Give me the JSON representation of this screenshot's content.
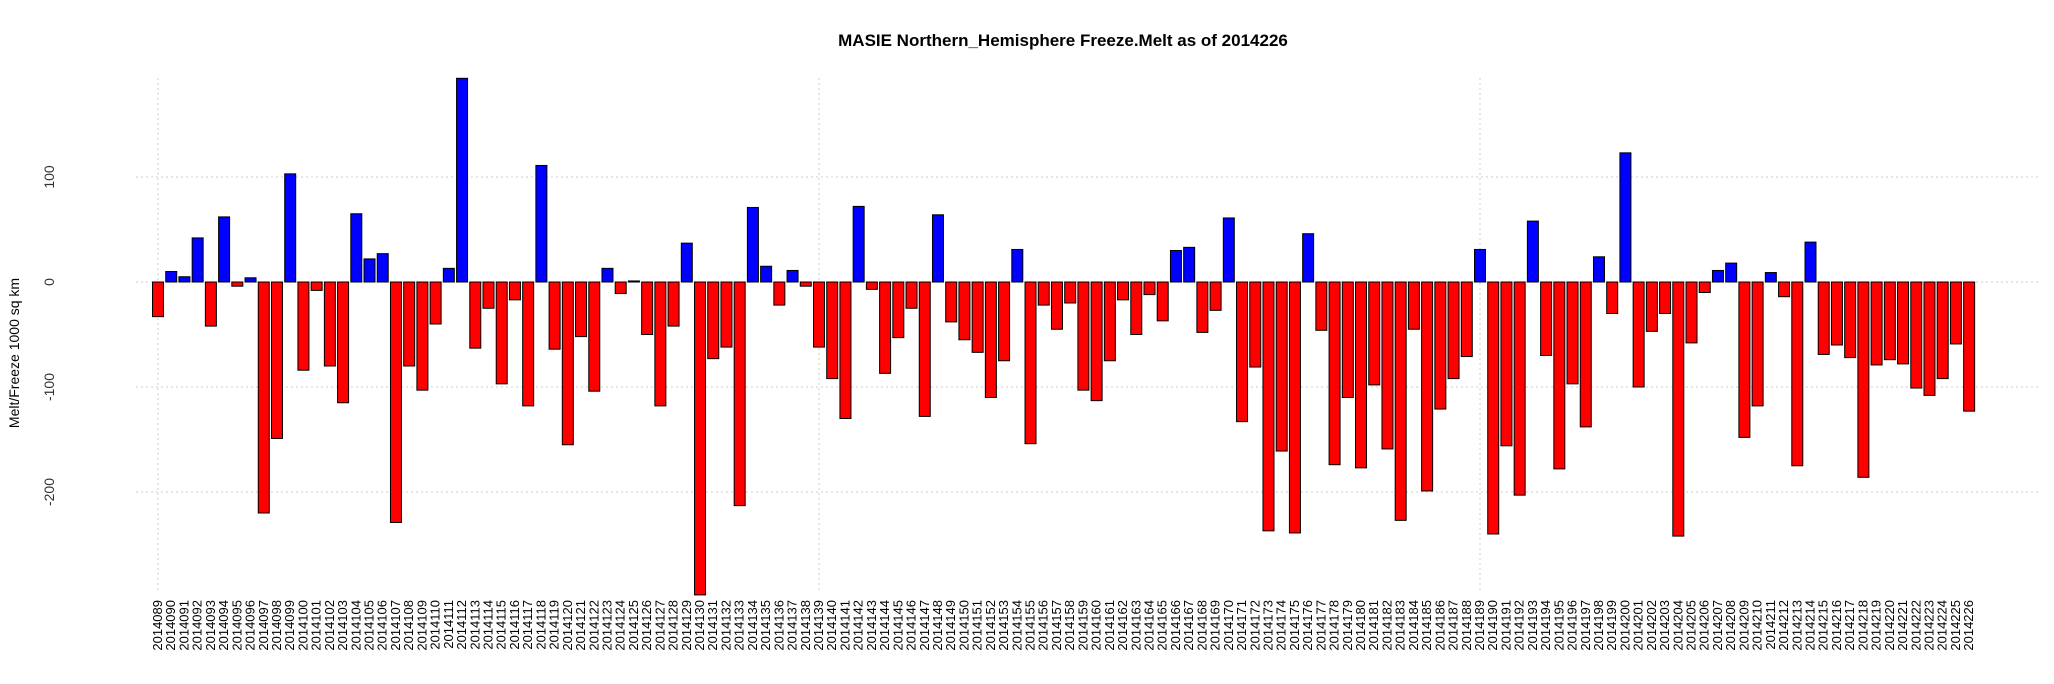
{
  "chart_data": {
    "type": "bar",
    "title": "MASIE Northern_Hemisphere Freeze.Melt as of 2014226",
    "xlabel": "",
    "ylabel": "Melt/Freeze 1000 sq km",
    "yticks": [
      -200,
      -100,
      0,
      100
    ],
    "ylim": [
      -300,
      195
    ],
    "grid": true,
    "colors": {
      "positive": "#0000ff",
      "negative": "#ff0000"
    },
    "categories": [
      "2014089",
      "2014090",
      "2014091",
      "2014092",
      "2014093",
      "2014094",
      "2014095",
      "2014096",
      "2014097",
      "2014098",
      "2014099",
      "2014100",
      "2014101",
      "2014102",
      "2014103",
      "2014104",
      "2014105",
      "2014106",
      "2014107",
      "2014108",
      "2014109",
      "2014110",
      "2014111",
      "2014112",
      "2014113",
      "2014114",
      "2014115",
      "2014116",
      "2014117",
      "2014118",
      "2014119",
      "2014120",
      "2014121",
      "2014122",
      "2014123",
      "2014124",
      "2014125",
      "2014126",
      "2014127",
      "2014128",
      "2014129",
      "2014130",
      "2014131",
      "2014132",
      "2014133",
      "2014134",
      "2014135",
      "2014136",
      "2014137",
      "2014138",
      "2014139",
      "2014140",
      "2014141",
      "2014142",
      "2014143",
      "2014144",
      "2014145",
      "2014146",
      "2014147",
      "2014148",
      "2014149",
      "2014150",
      "2014151",
      "2014152",
      "2014153",
      "2014154",
      "2014155",
      "2014156",
      "2014157",
      "2014158",
      "2014159",
      "2014160",
      "2014161",
      "2014162",
      "2014163",
      "2014164",
      "2014165",
      "2014166",
      "2014167",
      "2014168",
      "2014169",
      "2014170",
      "2014171",
      "2014172",
      "2014173",
      "2014174",
      "2014175",
      "2014176",
      "2014177",
      "2014178",
      "2014179",
      "2014180",
      "2014181",
      "2014182",
      "2014183",
      "2014184",
      "2014185",
      "2014186",
      "2014187",
      "2014188",
      "2014189",
      "2014190",
      "2014191",
      "2014192",
      "2014193",
      "2014194",
      "2014195",
      "2014196",
      "2014197",
      "2014198",
      "2014199",
      "2014200",
      "2014201",
      "2014202",
      "2014203",
      "2014204",
      "2014205",
      "2014206",
      "2014207",
      "2014208",
      "2014209",
      "2014210",
      "2014211",
      "2014212",
      "2014213",
      "2014214",
      "2014215",
      "2014216",
      "2014217",
      "2014218",
      "2014219",
      "2014220",
      "2014221",
      "2014222",
      "2014223",
      "2014224",
      "2014225",
      "2014226"
    ],
    "values": [
      -33,
      10,
      5,
      42,
      -42,
      62,
      -4,
      4,
      -220,
      -149,
      103,
      -84,
      -8,
      -80,
      -115,
      65,
      22,
      27,
      -229,
      -80,
      -103,
      -40,
      13,
      194,
      -63,
      -25,
      -97,
      -17,
      -118,
      111,
      -64,
      -155,
      -52,
      -104,
      13,
      -11,
      1,
      -50,
      -118,
      -42,
      37,
      -298,
      -73,
      -62,
      -213,
      71,
      15,
      -22,
      11,
      -4,
      -62,
      -92,
      -130,
      72,
      -7,
      -87,
      -53,
      -25,
      -128,
      64,
      -38,
      -55,
      -67,
      -110,
      -75,
      31,
      -154,
      -22,
      -45,
      -20,
      -103,
      -113,
      -75,
      -17,
      -50,
      -12,
      -37,
      30,
      33,
      -48,
      -27,
      61,
      -133,
      -81,
      -237,
      -161,
      -239,
      46,
      -46,
      -174,
      -110,
      -177,
      -98,
      -159,
      -227,
      -45,
      -199,
      -121,
      -92,
      -71,
      31,
      -240,
      -156,
      -203,
      58,
      -70,
      -178,
      -97,
      -138,
      24,
      -30,
      123,
      -100,
      -47,
      -30,
      -242,
      -58,
      -10,
      11,
      18,
      -148,
      -118,
      9,
      -14,
      -175,
      38,
      -69,
      -60,
      -72,
      -186,
      -79,
      -74,
      -78,
      -101,
      -108,
      -92,
      -59,
      -123
    ]
  }
}
